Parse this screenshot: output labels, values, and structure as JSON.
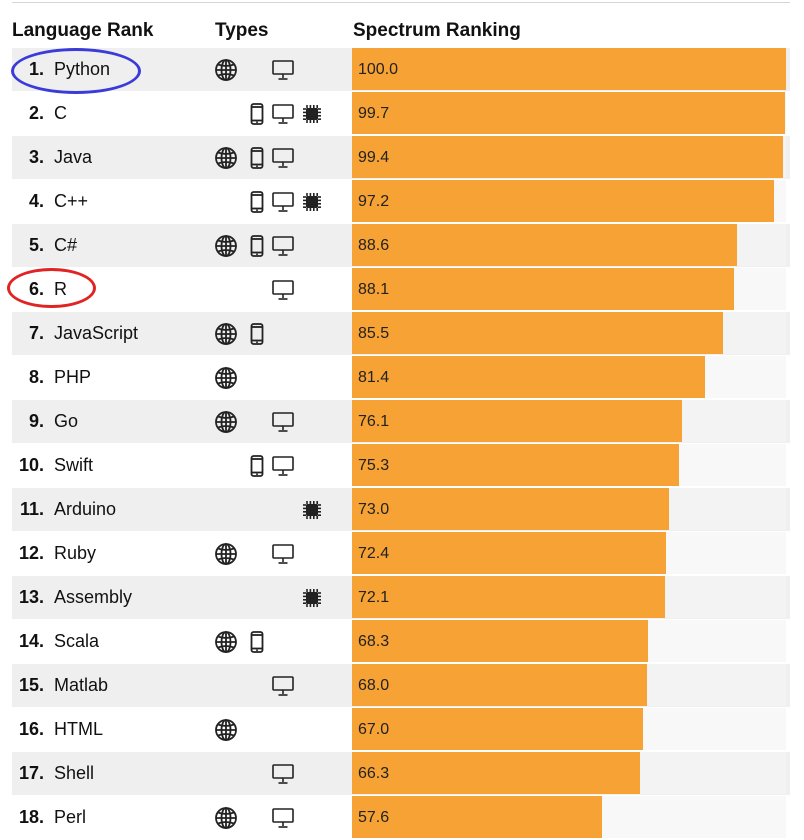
{
  "headers": {
    "rank": "Language Rank",
    "types": "Types",
    "spectrum": "Spectrum Ranking"
  },
  "colors": {
    "bar": "#f6a234",
    "highlight_python": "#3b3bd9",
    "highlight_r": "#e02424"
  },
  "chart_data": {
    "type": "bar",
    "title": "Spectrum Ranking",
    "categories": [
      "Python",
      "C",
      "Java",
      "C++",
      "C#",
      "R",
      "JavaScript",
      "PHP",
      "Go",
      "Swift",
      "Arduino",
      "Ruby",
      "Assembly",
      "Scala",
      "Matlab",
      "HTML",
      "Shell",
      "Perl"
    ],
    "values": [
      100.0,
      99.7,
      99.4,
      97.2,
      88.6,
      88.1,
      85.5,
      81.4,
      76.1,
      75.3,
      73.0,
      72.4,
      72.1,
      68.3,
      68.0,
      67.0,
      66.3,
      57.6
    ],
    "xlim": [
      0,
      100
    ],
    "orientation": "horizontal"
  },
  "rows": [
    {
      "rank": "1.",
      "name": "Python",
      "score": "100.0",
      "types": [
        "web-icon",
        "desktop-icon"
      ]
    },
    {
      "rank": "2.",
      "name": "C",
      "score": "99.7",
      "types": [
        "mobile-icon",
        "desktop-icon",
        "embedded-icon"
      ]
    },
    {
      "rank": "3.",
      "name": "Java",
      "score": "99.4",
      "types": [
        "web-icon",
        "mobile-icon",
        "desktop-icon"
      ]
    },
    {
      "rank": "4.",
      "name": "C++",
      "score": "97.2",
      "types": [
        "mobile-icon",
        "desktop-icon",
        "embedded-icon"
      ]
    },
    {
      "rank": "5.",
      "name": "C#",
      "score": "88.6",
      "types": [
        "web-icon",
        "mobile-icon",
        "desktop-icon"
      ]
    },
    {
      "rank": "6.",
      "name": "R",
      "score": "88.1",
      "types": [
        "desktop-icon"
      ]
    },
    {
      "rank": "7.",
      "name": "JavaScript",
      "score": "85.5",
      "types": [
        "web-icon",
        "mobile-icon"
      ]
    },
    {
      "rank": "8.",
      "name": "PHP",
      "score": "81.4",
      "types": [
        "web-icon"
      ]
    },
    {
      "rank": "9.",
      "name": "Go",
      "score": "76.1",
      "types": [
        "web-icon",
        "desktop-icon"
      ]
    },
    {
      "rank": "10.",
      "name": "Swift",
      "score": "75.3",
      "types": [
        "mobile-icon",
        "desktop-icon"
      ]
    },
    {
      "rank": "11.",
      "name": "Arduino",
      "score": "73.0",
      "types": [
        "embedded-icon"
      ]
    },
    {
      "rank": "12.",
      "name": "Ruby",
      "score": "72.4",
      "types": [
        "web-icon",
        "desktop-icon"
      ]
    },
    {
      "rank": "13.",
      "name": "Assembly",
      "score": "72.1",
      "types": [
        "embedded-icon"
      ]
    },
    {
      "rank": "14.",
      "name": "Scala",
      "score": "68.3",
      "types": [
        "web-icon",
        "mobile-icon"
      ]
    },
    {
      "rank": "15.",
      "name": "Matlab",
      "score": "68.0",
      "types": [
        "desktop-icon"
      ]
    },
    {
      "rank": "16.",
      "name": "HTML",
      "score": "67.0",
      "types": [
        "web-icon"
      ]
    },
    {
      "rank": "17.",
      "name": "Shell",
      "score": "66.3",
      "types": [
        "desktop-icon"
      ]
    },
    {
      "rank": "18.",
      "name": "Perl",
      "score": "57.6",
      "types": [
        "web-icon",
        "desktop-icon"
      ]
    }
  ]
}
